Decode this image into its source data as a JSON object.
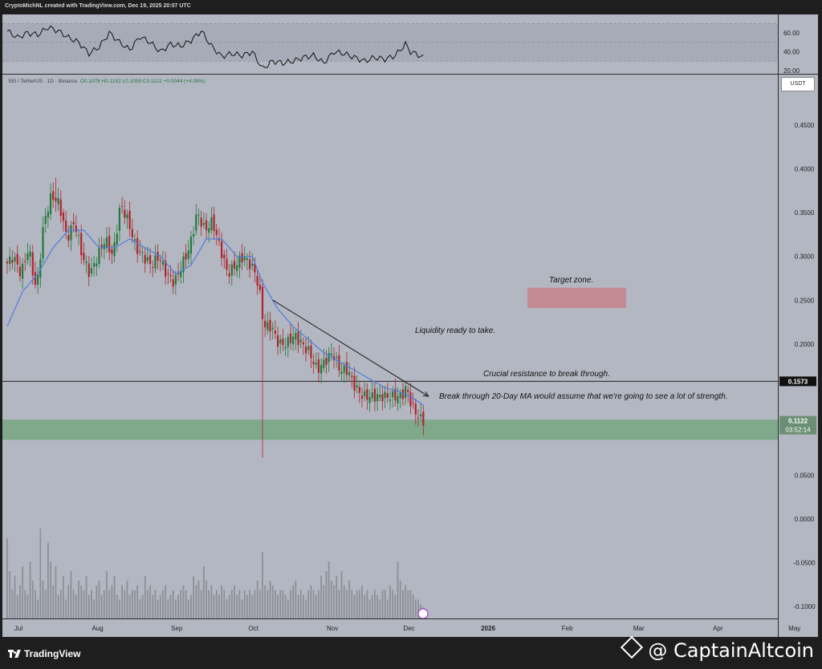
{
  "header": {
    "credit": "CryptoMichNL created with TradingView.com, Dec 19, 2025 20:07 UTC"
  },
  "symbol": {
    "name": "SEI / TetherUS · 1D · Binance",
    "ohlc": "O0.1078 H0.1152 L0.1059 C0.1122 +0.0044 (+4.08%)"
  },
  "currency_badge": "USDT",
  "annotations": {
    "target_zone": "Target zone.",
    "liquidity": "Liquidity ready to take.",
    "resistance": "Crucial resistance to break through.",
    "breakthrough": "Break through 20-Day MA would assume that we're going to see a lot of strength."
  },
  "colors": {
    "background": "#b3b7c2",
    "candle_up": "#1f7a3a",
    "candle_down": "#b0232a",
    "ma": "#4f7fe0",
    "support_zone": "#7fa98a",
    "target_zone": "#c48a93",
    "volume": "#8d8f96"
  },
  "footer": {
    "brand": "TradingView",
    "watermark": "@ CaptainAltcoin"
  },
  "chart_data": {
    "type": "candlestick",
    "price_axis": {
      "ticks": [
        0.45,
        0.4,
        0.35,
        0.3,
        0.25,
        0.2,
        0.15,
        0.1,
        0.05,
        0.0,
        -0.05,
        -0.1
      ],
      "tick_labels": [
        "0.4500",
        "0.4000",
        "0.3500",
        "0.3000",
        "0.2500",
        "0.2000",
        "",
        "",
        "0.0500",
        "0.0000",
        "-0.0500",
        "-0.1000"
      ]
    },
    "rsi_axis": {
      "ticks": [
        60,
        40,
        20
      ],
      "tick_labels": [
        "60.00",
        "40.00",
        "20.00"
      ]
    },
    "time_axis": {
      "labels": [
        {
          "label": "Jul",
          "day": 0
        },
        {
          "label": "Aug",
          "day": 31
        },
        {
          "label": "Sep",
          "day": 62
        },
        {
          "label": "Oct",
          "day": 92
        },
        {
          "label": "Nov",
          "day": 123
        },
        {
          "label": "Dec",
          "day": 153
        },
        {
          "label": "2026",
          "day": 184
        },
        {
          "label": "Feb",
          "day": 215
        },
        {
          "label": "Mar",
          "day": 243
        },
        {
          "label": "Apr",
          "day": 274
        },
        {
          "label": "May",
          "day": 304
        }
      ]
    },
    "price_path": [
      [
        0,
        0.29
      ],
      [
        3,
        0.3
      ],
      [
        6,
        0.28
      ],
      [
        9,
        0.31
      ],
      [
        12,
        0.26
      ],
      [
        15,
        0.34
      ],
      [
        18,
        0.37
      ],
      [
        21,
        0.36
      ],
      [
        24,
        0.32
      ],
      [
        27,
        0.34
      ],
      [
        30,
        0.3
      ],
      [
        33,
        0.28
      ],
      [
        36,
        0.3
      ],
      [
        39,
        0.32
      ],
      [
        42,
        0.3
      ],
      [
        45,
        0.36
      ],
      [
        48,
        0.34
      ],
      [
        51,
        0.31
      ],
      [
        54,
        0.3
      ],
      [
        57,
        0.29
      ],
      [
        60,
        0.3
      ],
      [
        63,
        0.28
      ],
      [
        66,
        0.27
      ],
      [
        69,
        0.29
      ],
      [
        72,
        0.31
      ],
      [
        75,
        0.35
      ],
      [
        78,
        0.33
      ],
      [
        81,
        0.34
      ],
      [
        84,
        0.31
      ],
      [
        87,
        0.28
      ],
      [
        90,
        0.29
      ],
      [
        93,
        0.3
      ],
      [
        96,
        0.29
      ],
      [
        98,
        0.28
      ],
      [
        100,
        0.25
      ],
      [
        101,
        0.22
      ],
      [
        104,
        0.22
      ],
      [
        107,
        0.2
      ],
      [
        110,
        0.2
      ],
      [
        113,
        0.21
      ],
      [
        116,
        0.2
      ],
      [
        119,
        0.19
      ],
      [
        122,
        0.17
      ],
      [
        125,
        0.18
      ],
      [
        128,
        0.19
      ],
      [
        131,
        0.17
      ],
      [
        134,
        0.17
      ],
      [
        137,
        0.15
      ],
      [
        140,
        0.14
      ],
      [
        143,
        0.14
      ],
      [
        146,
        0.14
      ],
      [
        149,
        0.14
      ],
      [
        152,
        0.14
      ],
      [
        155,
        0.14
      ],
      [
        157,
        0.15
      ],
      [
        159,
        0.13
      ],
      [
        161,
        0.12
      ],
      [
        163,
        0.1122
      ]
    ],
    "ma20": [
      [
        0,
        0.22
      ],
      [
        6,
        0.26
      ],
      [
        12,
        0.28
      ],
      [
        18,
        0.31
      ],
      [
        24,
        0.33
      ],
      [
        30,
        0.33
      ],
      [
        36,
        0.31
      ],
      [
        42,
        0.31
      ],
      [
        48,
        0.32
      ],
      [
        54,
        0.31
      ],
      [
        60,
        0.3
      ],
      [
        66,
        0.28
      ],
      [
        72,
        0.29
      ],
      [
        78,
        0.32
      ],
      [
        84,
        0.32
      ],
      [
        90,
        0.3
      ],
      [
        96,
        0.3
      ],
      [
        100,
        0.27
      ],
      [
        106,
        0.24
      ],
      [
        112,
        0.22
      ],
      [
        118,
        0.205
      ],
      [
        124,
        0.19
      ],
      [
        130,
        0.18
      ],
      [
        136,
        0.17
      ],
      [
        142,
        0.16
      ],
      [
        148,
        0.15
      ],
      [
        154,
        0.145
      ],
      [
        158,
        0.14
      ],
      [
        163,
        0.13
      ]
    ],
    "wick_extremes": [
      {
        "day": 19,
        "high": 0.39
      },
      {
        "day": 100,
        "low": 0.07
      },
      {
        "day": 156,
        "high": 0.158
      }
    ],
    "rsi_path": [
      [
        0,
        62
      ],
      [
        4,
        55
      ],
      [
        8,
        60
      ],
      [
        12,
        58
      ],
      [
        16,
        66
      ],
      [
        20,
        62
      ],
      [
        24,
        55
      ],
      [
        28,
        50
      ],
      [
        32,
        38
      ],
      [
        36,
        45
      ],
      [
        40,
        60
      ],
      [
        44,
        50
      ],
      [
        48,
        42
      ],
      [
        52,
        56
      ],
      [
        56,
        50
      ],
      [
        60,
        40
      ],
      [
        64,
        48
      ],
      [
        68,
        46
      ],
      [
        72,
        52
      ],
      [
        76,
        62
      ],
      [
        80,
        46
      ],
      [
        84,
        35
      ],
      [
        88,
        38
      ],
      [
        92,
        36
      ],
      [
        96,
        40
      ],
      [
        100,
        22
      ],
      [
        104,
        30
      ],
      [
        108,
        28
      ],
      [
        112,
        30
      ],
      [
        116,
        34
      ],
      [
        120,
        36
      ],
      [
        124,
        28
      ],
      [
        128,
        40
      ],
      [
        132,
        38
      ],
      [
        136,
        34
      ],
      [
        140,
        30
      ],
      [
        144,
        34
      ],
      [
        148,
        32
      ],
      [
        152,
        36
      ],
      [
        156,
        48
      ],
      [
        158,
        40
      ],
      [
        160,
        38
      ],
      [
        163,
        34
      ]
    ],
    "levels": {
      "resistance": 0.1573,
      "current": 0.1122,
      "countdown": "03:52:14"
    },
    "zones": {
      "support": [
        0.0905,
        0.1135
      ],
      "target": [
        0.2412,
        0.2642
      ]
    },
    "trendline": {
      "from": [
        104,
        0.2502
      ],
      "to": [
        165,
        0.1402
      ]
    },
    "volume": {
      "relative_heights": [
        0.85,
        0.5,
        0.3,
        0.45,
        0.25,
        0.35,
        0.55,
        0.3,
        0.25,
        0.6,
        0.4,
        0.3,
        0.2,
        0.95,
        0.4,
        0.3,
        0.8,
        0.6,
        0.35,
        0.55,
        0.25,
        0.3,
        0.45,
        0.2,
        0.35,
        0.5,
        0.3,
        0.25,
        0.4,
        0.35,
        0.3,
        0.45,
        0.25,
        0.3,
        0.2,
        0.35,
        0.4,
        0.25,
        0.3,
        0.5,
        0.3,
        0.35,
        0.45,
        0.25,
        0.2,
        0.35,
        0.3,
        0.4,
        0.25,
        0.3,
        0.3,
        0.35,
        0.2,
        0.25,
        0.45,
        0.3,
        0.35,
        0.25,
        0.3,
        0.2,
        0.25,
        0.3,
        0.35,
        0.2,
        0.25,
        0.3,
        0.2,
        0.25,
        0.3,
        0.35,
        0.3,
        0.2,
        0.25,
        0.45,
        0.35,
        0.4,
        0.3,
        0.55,
        0.4,
        0.3,
        0.35,
        0.25,
        0.3,
        0.25,
        0.35,
        0.3,
        0.2,
        0.25,
        0.3,
        0.35,
        0.25,
        0.3,
        0.2,
        0.3,
        0.25,
        0.3,
        0.25,
        0.3,
        0.4,
        0.3,
        0.7,
        0.35,
        0.3,
        0.4,
        0.35,
        0.3,
        0.25,
        0.3,
        0.3,
        0.25,
        0.2,
        0.3,
        0.35,
        0.4,
        0.25,
        0.3,
        0.25,
        0.2,
        0.3,
        0.35,
        0.3,
        0.25,
        0.3,
        0.45,
        0.35,
        0.5,
        0.6,
        0.4,
        0.35,
        0.45,
        0.3,
        0.5,
        0.35,
        0.3,
        0.4,
        0.3,
        0.25,
        0.3,
        0.3,
        0.35,
        0.25,
        0.3,
        0.2,
        0.25,
        0.3,
        0.25,
        0.2,
        0.3,
        0.3,
        0.2,
        0.35,
        0.3,
        0.25,
        0.6,
        0.4,
        0.3,
        0.35,
        0.3,
        0.3,
        0.25,
        0.2,
        0.2,
        0.15,
        0.12
      ]
    }
  }
}
